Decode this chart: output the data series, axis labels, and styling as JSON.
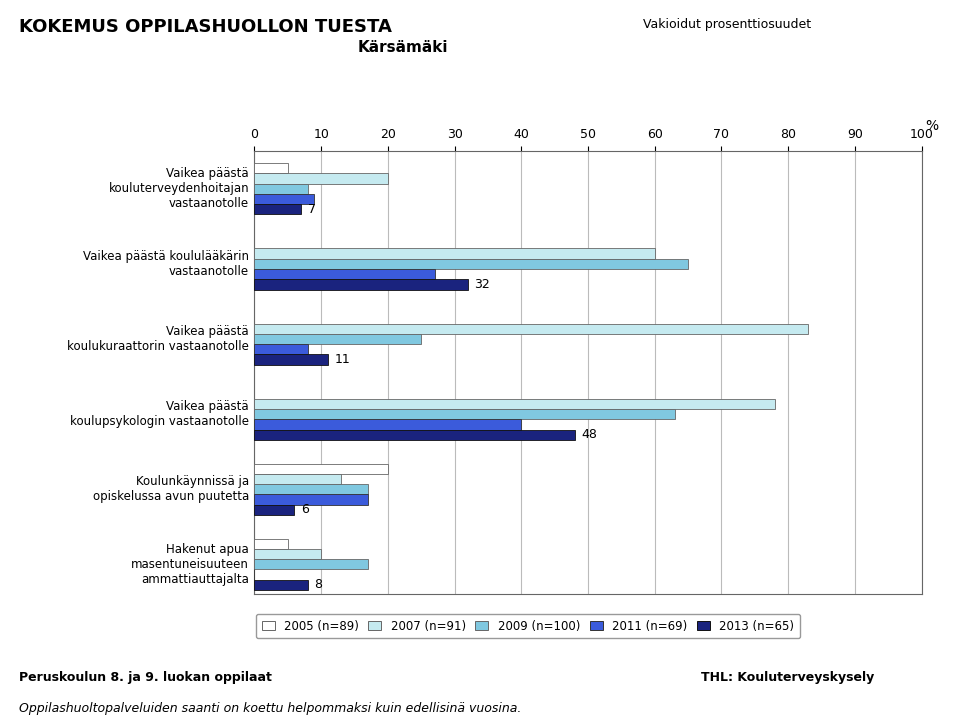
{
  "title_main": "KOKEMUS OPPILASHUOLLON TUESTA",
  "title_sub": "Kärsämäki",
  "title_right": "Vakioidut prosenttiosuudet",
  "categories": [
    "Vaikea päästä\nkouluterveydenhoitajan\nvastaanotolle",
    "Vaikea päästä koululääkärin\nvastaanotolle",
    "Vaikea päästä\nkoulukuraattorin vastaanotolle",
    "Vaikea päästä\nkoulupsykologin vastaanotolle",
    "Koulunkäynnissä ja\nopiskelussa avun puutetta",
    "Hakenut apua\nmasentuneisuuteen\nammattiauttajalta"
  ],
  "series": [
    {
      "label": "2005 (n=89)",
      "color": "#ffffff",
      "edgecolor": "#666666",
      "values": [
        5,
        0,
        0,
        0,
        20,
        5
      ]
    },
    {
      "label": "2007 (n=91)",
      "color": "#c5eaf0",
      "edgecolor": "#666666",
      "values": [
        20,
        60,
        83,
        78,
        13,
        10
      ]
    },
    {
      "label": "2009 (n=100)",
      "color": "#80c8e0",
      "edgecolor": "#666666",
      "values": [
        8,
        65,
        25,
        63,
        17,
        17
      ]
    },
    {
      "label": "2011 (n=69)",
      "color": "#3b5bdb",
      "edgecolor": "#333333",
      "values": [
        9,
        27,
        8,
        40,
        17,
        0
      ]
    },
    {
      "label": "2013 (n=65)",
      "color": "#1a237e",
      "edgecolor": "#111111",
      "values": [
        7,
        32,
        11,
        48,
        6,
        8
      ]
    }
  ],
  "xlim": [
    0,
    100
  ],
  "xticks": [
    0,
    10,
    20,
    30,
    40,
    50,
    60,
    70,
    80,
    90,
    100
  ],
  "xlabel_pct": "%",
  "footer_left": "Peruskoulun 8. ja 9. luokan oppilaat",
  "footer_right": "THL: Kouluterveyskysely",
  "bottom_text": "Oppilashuoltopalveluiden saanti on koettu helpommaksi kuin edellisinä vuosina.",
  "bg_color": "#ffffff",
  "plot_bg": "#ffffff",
  "grid_color": "#bbbbbb"
}
